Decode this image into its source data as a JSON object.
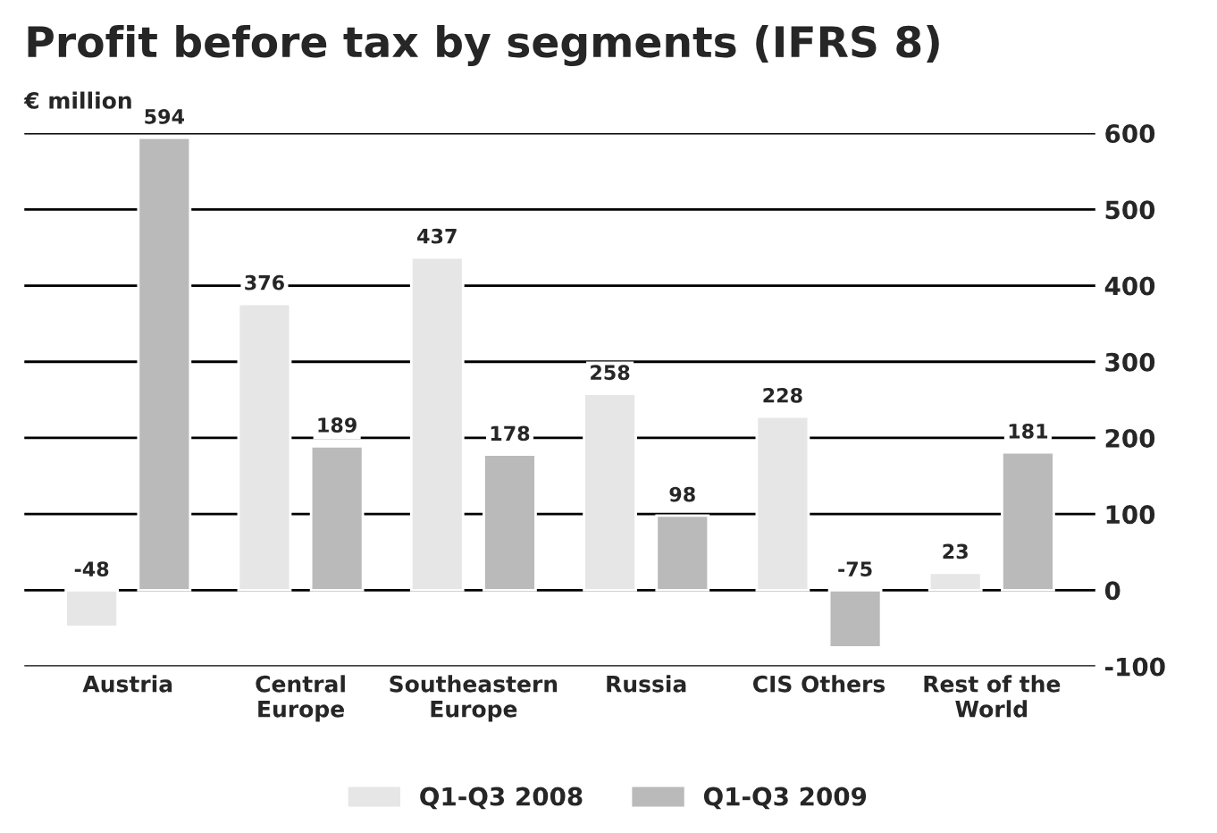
{
  "chart_data": {
    "type": "bar",
    "title": "Profit before tax by segments (IFRS 8)",
    "ylabel": "€ million",
    "categories": [
      "Austria",
      "Central\nEurope",
      "Southeastern\nEurope",
      "Russia",
      "CIS Others",
      "Rest of the\nWorld"
    ],
    "series": [
      {
        "name": "Q1-Q3 2008",
        "color": "#e6e6e6",
        "values": [
          -48,
          376,
          437,
          258,
          228,
          23
        ]
      },
      {
        "name": "Q1-Q3 2009",
        "color": "#bababa",
        "values": [
          594,
          189,
          178,
          98,
          -75,
          181
        ]
      }
    ],
    "ylim": [
      -100,
      600
    ],
    "yticks": [
      -100,
      0,
      100,
      200,
      300,
      400,
      500,
      600
    ],
    "grid": "y",
    "legend": "bottom",
    "data_labels": true
  }
}
